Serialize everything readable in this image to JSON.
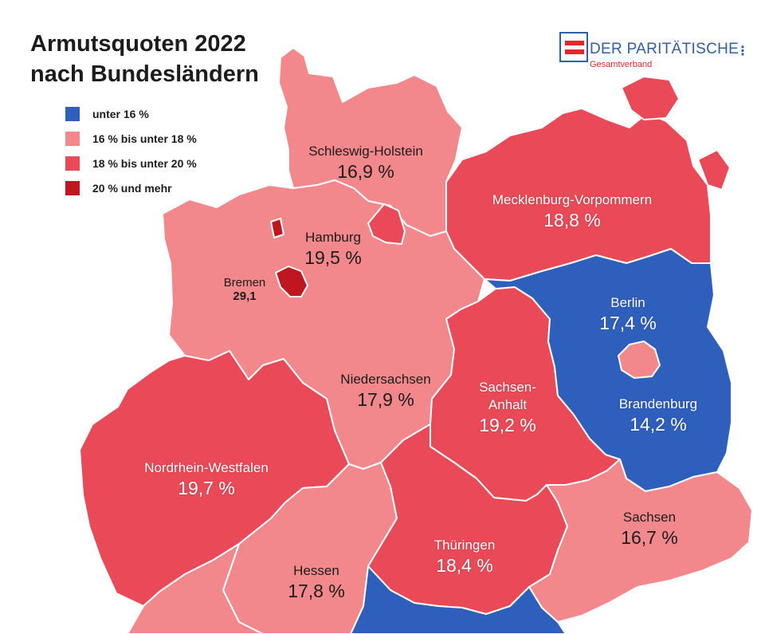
{
  "title_line1": "Armutsquoten 2022",
  "title_line2": "nach Bundesländern",
  "logo": {
    "name": "DER PARITÄTISCHE",
    "sub": "Gesamtverband",
    "dots": "⋮",
    "colors": {
      "blue": "#2f5ea8",
      "red": "#e2282d"
    }
  },
  "legend": [
    {
      "label": "unter 16 %",
      "color": "#2f5fbd"
    },
    {
      "label": "16 % bis unter 18 %",
      "color": "#f2888c"
    },
    {
      "label": "18 % bis unter 20 %",
      "color": "#ea4a57"
    },
    {
      "label": "20 % und mehr",
      "color": "#c0161f"
    }
  ],
  "regions": {
    "schleswig_holstein": {
      "name": "Schleswig-Holstein",
      "value": "16,9 %"
    },
    "mecklenburg_vorpommern": {
      "name": "Mecklenburg-Vorpommern",
      "value": "18,8 %"
    },
    "hamburg": {
      "name": "Hamburg",
      "value": "19,5 %"
    },
    "bremen": {
      "name": "Bremen",
      "value": "29,1"
    },
    "berlin": {
      "name": "Berlin",
      "value": "17,4 %"
    },
    "niedersachsen": {
      "name": "Niedersachsen",
      "value": "17,9 %"
    },
    "sachsen_anhalt": {
      "name_line1": "Sachsen-",
      "name_line2": "Anhalt",
      "value": "19,2 %"
    },
    "brandenburg": {
      "name": "Brandenburg",
      "value": "14,2 %"
    },
    "nordrhein_westfalen": {
      "name": "Nordrhein-Westfalen",
      "value": "19,7 %"
    },
    "sachsen": {
      "name": "Sachsen",
      "value": "16,7 %"
    },
    "thueringen": {
      "name": "Thüringen",
      "value": "18,4 %"
    },
    "hessen": {
      "name": "Hessen",
      "value": "17,8 %"
    }
  }
}
